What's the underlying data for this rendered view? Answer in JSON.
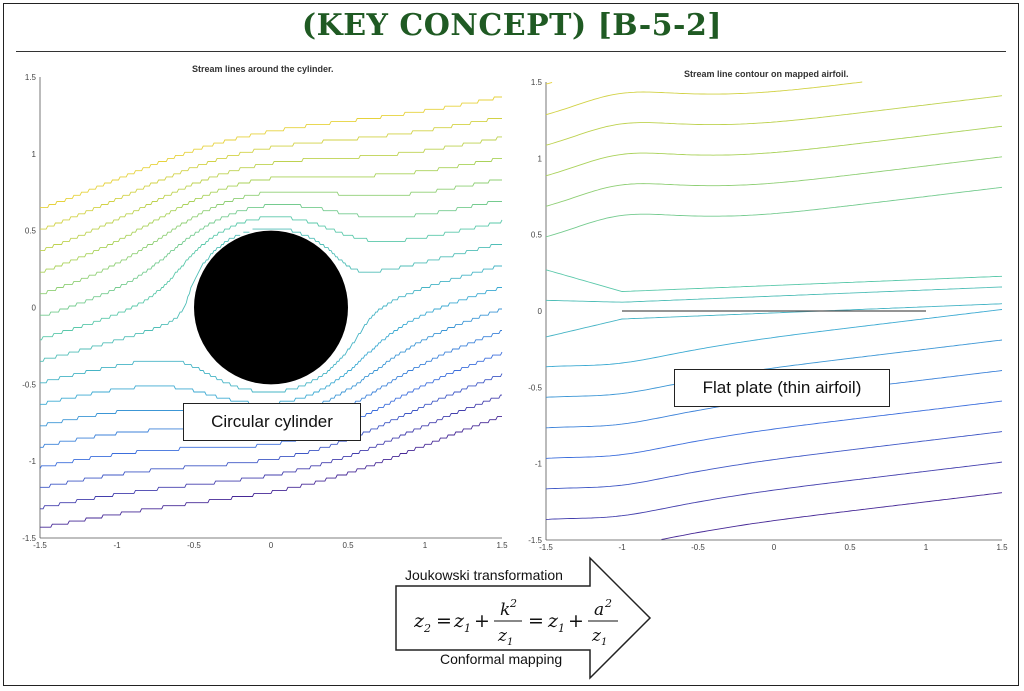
{
  "header": {
    "title": "(KEY CONCEPT) [B-5-2]"
  },
  "plots": [
    {
      "title": "Stream lines around the cylinder.",
      "x_ticks": [
        "-1.5",
        "-1",
        "-0.5",
        "0",
        "0.5",
        "1",
        "1.5"
      ],
      "y_ticks": [
        "1.5",
        "1",
        "0.5",
        "0",
        "-0.5",
        "-1",
        "-1.5"
      ],
      "label": "Circular cylinder"
    },
    {
      "title": "Stream line contour on mapped airfoil.",
      "x_ticks": [
        "-1.5",
        "-1",
        "-0.5",
        "0",
        "0.5",
        "1",
        "1.5"
      ],
      "y_ticks": [
        "1.5",
        "1",
        "0.5",
        "0",
        "-0.5",
        "-1",
        "-1.5"
      ],
      "label": "Flat plate (thin airfoil)"
    }
  ],
  "arrow": {
    "top_text": "Joukowski transformation",
    "bottom_text": "Conformal mapping",
    "equation": "z2 = z1 + k^2/z1 = z1 + a^2/z1"
  },
  "colors": {
    "title": "#1f5a23",
    "cylinder": "#000000",
    "plate": "#555555"
  },
  "chart_data": [
    {
      "type": "line",
      "title": "Stream lines around the cylinder.",
      "xlim": [
        -1.5,
        1.5
      ],
      "ylim": [
        -1.5,
        1.5
      ],
      "cylinder_radius": 0.5
    },
    {
      "type": "line",
      "title": "Stream line contour on mapped airfoil.",
      "xlim": [
        -1.5,
        1.5
      ],
      "ylim": [
        -1.5,
        1.5
      ],
      "plate_x": [
        -1,
        1
      ]
    }
  ]
}
